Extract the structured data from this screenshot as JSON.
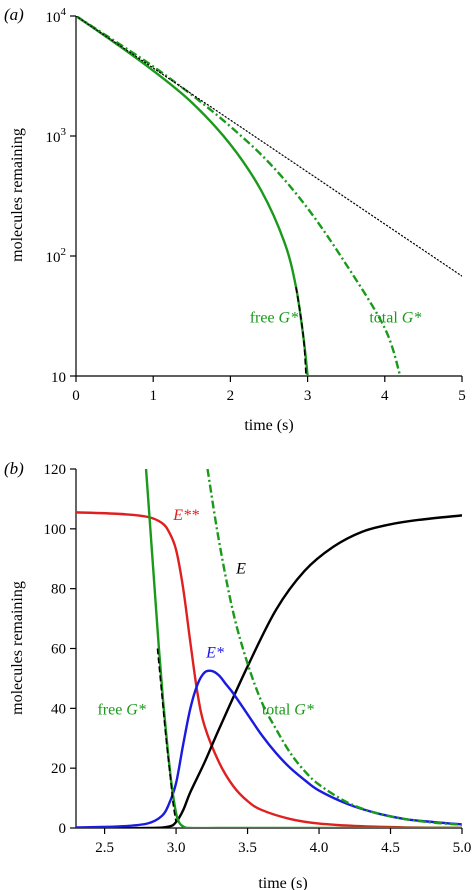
{
  "chart_data": [
    {
      "panel": "(a)",
      "type": "line",
      "xlabel": "time (s)",
      "ylabel": "molecules remaining",
      "xlim": [
        0,
        5
      ],
      "ylim": [
        10,
        10000
      ],
      "yscale": "log",
      "xticks": [
        "0",
        "1",
        "2",
        "3",
        "4",
        "5"
      ],
      "yticks": [
        {
          "value": 10,
          "base": "10",
          "exp": ""
        },
        {
          "value": 100,
          "base": "10",
          "exp": "2"
        },
        {
          "value": 1000,
          "base": "10",
          "exp": "3"
        },
        {
          "value": 10000,
          "base": "10",
          "exp": "4"
        }
      ],
      "grid": false,
      "series": [
        {
          "name": "free G*",
          "color": "#1a9a1a",
          "dash": "solid",
          "x": [
            0,
            0.5,
            1,
            1.5,
            2,
            2.4,
            2.7,
            2.85,
            2.95,
            3.0
          ],
          "y": [
            10000,
            6000,
            3500,
            1900,
            850,
            350,
            130,
            55,
            20,
            10
          ]
        },
        {
          "name": "",
          "color": "#000000",
          "dash": "dashed",
          "x": [
            2.85,
            2.9,
            2.95,
            2.98
          ],
          "y": [
            55,
            35,
            20,
            10
          ]
        },
        {
          "name": "total G*",
          "color": "#1a9a1a",
          "dash": "dashdot",
          "x": [
            0,
            0.5,
            1,
            1.5,
            2,
            2.5,
            3,
            3.5,
            4,
            4.2
          ],
          "y": [
            10000,
            6200,
            3800,
            2200,
            1200,
            600,
            250,
            85,
            25,
            10
          ]
        },
        {
          "name": "",
          "color": "#000000",
          "dash": "dotted",
          "x": [
            0,
            5
          ],
          "y": [
            10000,
            68
          ]
        }
      ],
      "annotations": [
        {
          "text": "free ",
          "italic": "G*",
          "color": "#1a9a1a",
          "x": 2.25,
          "y": 28
        },
        {
          "text": "total ",
          "italic": "G*",
          "color": "#1a9a1a",
          "x": 3.8,
          "y": 28
        }
      ]
    },
    {
      "panel": "(b)",
      "type": "line",
      "xlabel": "time (s)",
      "ylabel": "molecules remaining",
      "xlim": [
        2.3,
        5.0
      ],
      "ylim": [
        0,
        120
      ],
      "xticks": [
        "2.5",
        "3.0",
        "3.5",
        "4.0",
        "4.5",
        "5.0"
      ],
      "yticks": [
        "0",
        "20",
        "40",
        "60",
        "80",
        "100",
        "120"
      ],
      "grid": false,
      "series": [
        {
          "name": "E**",
          "color": "#e02020",
          "dash": "solid",
          "x": [
            2.3,
            2.6,
            2.8,
            2.9,
            2.95,
            3.0,
            3.05,
            3.1,
            3.15,
            3.2,
            3.3,
            3.4,
            3.5,
            3.6,
            3.8,
            4.0,
            4.3,
            4.6,
            5.0
          ],
          "y": [
            105.5,
            105,
            104,
            102,
            99,
            93,
            80,
            62,
            45,
            34,
            22,
            14,
            9,
            6,
            3,
            1.5,
            0.6,
            0.2,
            0.05
          ]
        },
        {
          "name": "E",
          "color": "#000000",
          "dash": "solid",
          "x": [
            2.3,
            2.8,
            2.95,
            3.0,
            3.05,
            3.1,
            3.2,
            3.3,
            3.5,
            3.7,
            3.9,
            4.1,
            4.3,
            4.5,
            4.7,
            5.0
          ],
          "y": [
            0,
            0,
            0.5,
            2,
            6,
            12,
            22,
            33,
            54,
            73,
            86,
            94,
            99,
            101.5,
            103,
            104.5
          ]
        },
        {
          "name": "E*",
          "color": "#1a1ae0",
          "dash": "solid",
          "x": [
            2.3,
            2.6,
            2.8,
            2.9,
            2.95,
            3.0,
            3.05,
            3.1,
            3.15,
            3.2,
            3.25,
            3.3,
            3.35,
            3.4,
            3.5,
            3.6,
            3.7,
            3.8,
            3.9,
            4.0,
            4.2,
            4.4,
            4.6,
            4.8,
            5.0
          ],
          "y": [
            0.2,
            0.5,
            1.5,
            4,
            8,
            15,
            28,
            40,
            48,
            52,
            52.5,
            51,
            48,
            45,
            38,
            31,
            25,
            20,
            16,
            12.5,
            8,
            5,
            3,
            2,
            1.2
          ]
        },
        {
          "name": "free G*",
          "color": "#1a9a1a",
          "dash": "solid",
          "x": [
            2.79,
            2.82,
            2.85,
            2.88,
            2.91,
            2.94,
            2.97,
            3.0,
            3.02,
            3.05,
            3.1,
            3.3,
            3.6,
            4.0,
            5.0
          ],
          "y": [
            120,
            100,
            80,
            60,
            42,
            27,
            14,
            5,
            2,
            0.5,
            0,
            0,
            0,
            0,
            0
          ]
        },
        {
          "name": "",
          "color": "#000000",
          "dash": "dashed",
          "x": [
            2.87,
            2.9,
            2.93,
            2.96,
            2.98,
            3.0
          ],
          "y": [
            60,
            45,
            30,
            17,
            8,
            2
          ]
        },
        {
          "name": "total G*",
          "color": "#1a9a1a",
          "dash": "dashdot",
          "x": [
            3.22,
            3.3,
            3.4,
            3.5,
            3.6,
            3.7,
            3.8,
            3.9,
            4.0,
            4.2,
            4.4,
            4.6,
            4.8,
            5.0
          ],
          "y": [
            120,
            96,
            72,
            55,
            42,
            33,
            25,
            19,
            14.5,
            8.5,
            5,
            3,
            1.8,
            1.1
          ]
        }
      ],
      "annotations": [
        {
          "text": "",
          "italic": "E**",
          "color": "#e02020",
          "x": 2.98,
          "y": 103
        },
        {
          "text": "",
          "italic": "E",
          "color": "#000000",
          "x": 3.42,
          "y": 85
        },
        {
          "text": "",
          "italic": "E*",
          "color": "#1a1ae0",
          "x": 3.21,
          "y": 57
        },
        {
          "text": "free ",
          "italic": "G*",
          "color": "#1a9a1a",
          "x": 2.45,
          "y": 38
        },
        {
          "text": "total ",
          "italic": "G*",
          "color": "#1a9a1a",
          "x": 3.6,
          "y": 38
        }
      ]
    }
  ]
}
